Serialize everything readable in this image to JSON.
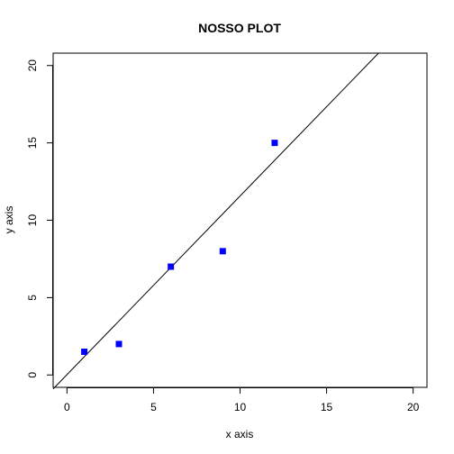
{
  "chart_data": {
    "type": "scatter",
    "title": "NOSSO PLOT",
    "xlabel": "x axis",
    "ylabel": "y axis",
    "xlim": [
      -0.8,
      20.8
    ],
    "ylim": [
      -0.8,
      20.8
    ],
    "xticks": [
      "0",
      "5",
      "10",
      "15",
      "20"
    ],
    "yticks": [
      "0",
      "5",
      "10",
      "15",
      "20"
    ],
    "points": [
      {
        "x": 1,
        "y": 1.5
      },
      {
        "x": 3,
        "y": 2
      },
      {
        "x": 6,
        "y": 7
      },
      {
        "x": 9,
        "y": 8
      },
      {
        "x": 12,
        "y": 15
      }
    ],
    "point_color": "#0000ff",
    "point_shape": "square",
    "line": {
      "x1": -0.8,
      "y1": -0.9,
      "x2": 18.0,
      "y2": 20.8,
      "color": "#000000"
    },
    "grid": false
  }
}
